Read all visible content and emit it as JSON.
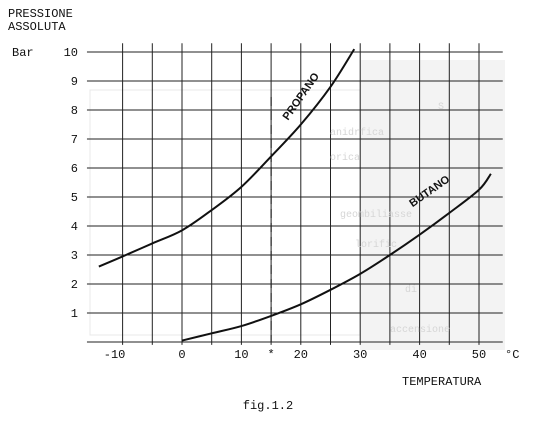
{
  "chart_data": {
    "type": "line",
    "title": "",
    "ylabel_lines": [
      "PRESSIONE",
      "ASSOLUTA"
    ],
    "yunit": "Bar",
    "xlabel": "TEMPERATURA",
    "xunit": "°C",
    "xlim": [
      -15,
      52
    ],
    "ylim": [
      0,
      10
    ],
    "xticks": [
      -10,
      0,
      10,
      20,
      30,
      40,
      50
    ],
    "yticks": [
      1,
      2,
      3,
      4,
      5,
      6,
      7,
      8,
      9,
      10
    ],
    "grid": true,
    "marker": {
      "label": "*",
      "x": 15
    },
    "series": [
      {
        "name": "PROPANO",
        "x": [
          -14,
          -10,
          -5,
          0,
          5,
          10,
          15,
          20,
          25,
          29
        ],
        "y": [
          2.6,
          2.95,
          3.4,
          3.85,
          4.55,
          5.35,
          6.4,
          7.5,
          8.8,
          10.1
        ]
      },
      {
        "name": "BUTANO",
        "x": [
          0,
          5,
          10,
          15,
          20,
          25,
          30,
          35,
          40,
          45,
          50,
          52
        ],
        "y": [
          0.05,
          0.3,
          0.55,
          0.9,
          1.3,
          1.8,
          2.35,
          3.0,
          3.7,
          4.45,
          5.25,
          5.8
        ]
      }
    ]
  },
  "figure": {
    "caption": "fig.1.2"
  }
}
